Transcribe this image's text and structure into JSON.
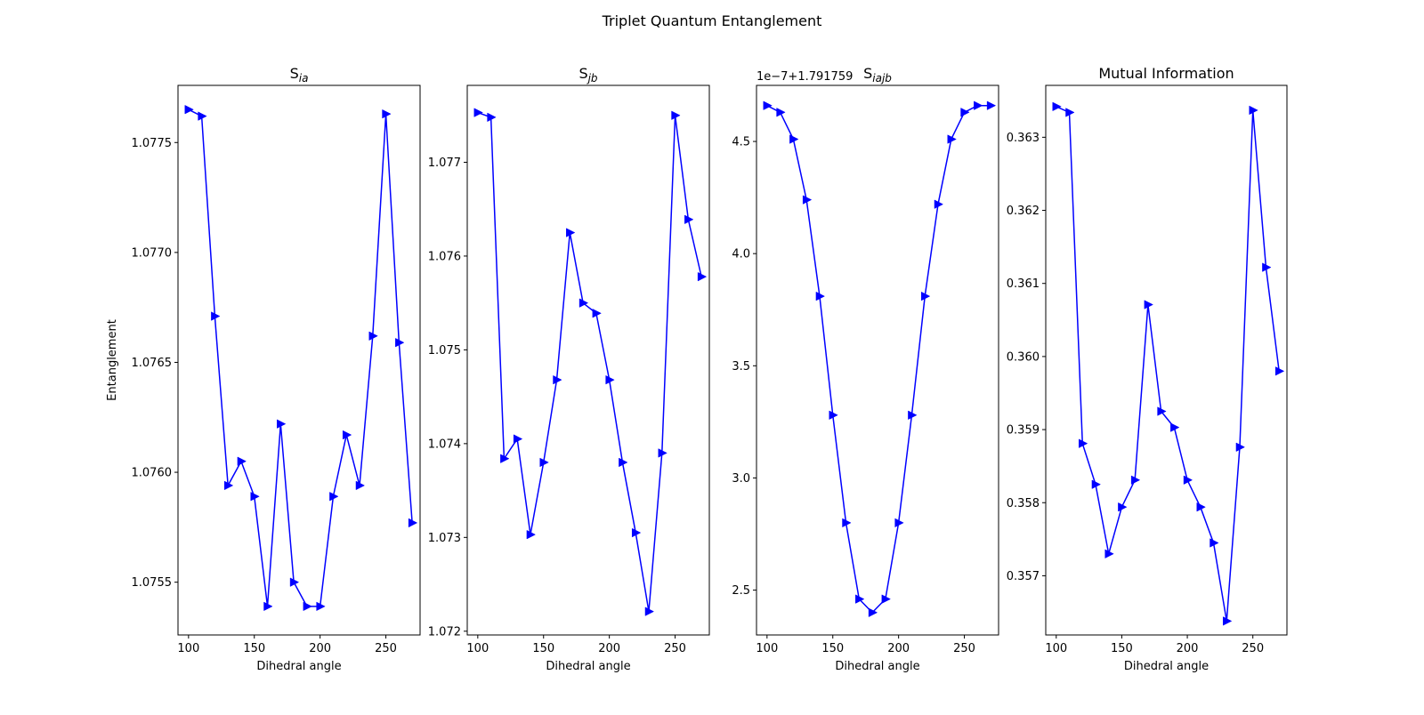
{
  "figure_title": "Triplet Quantum Entanglement",
  "chart_data": [
    {
      "type": "line",
      "title": "S",
      "title_sub": "ia",
      "xlabel": "Dihedral angle",
      "ylabel": "Entanglement",
      "offset_label": "",
      "x": [
        100,
        110,
        120,
        130,
        140,
        150,
        160,
        170,
        180,
        190,
        200,
        210,
        220,
        230,
        240,
        250,
        260,
        270
      ],
      "y": [
        1.07765,
        1.07762,
        1.07671,
        1.07594,
        1.07605,
        1.07589,
        1.07539,
        1.07622,
        1.0755,
        1.07539,
        1.07539,
        1.07589,
        1.07617,
        1.07594,
        1.07662,
        1.07763,
        1.07659,
        1.07577
      ],
      "xlim": [
        92,
        276
      ],
      "ylim": [
        1.07526,
        1.07776
      ],
      "xticks": [
        100,
        150,
        200,
        250
      ],
      "xtick_labels": [
        "100",
        "150",
        "200",
        "250"
      ],
      "yticks": [
        1.0755,
        1.076,
        1.0765,
        1.077,
        1.0775
      ],
      "ytick_labels": [
        "1.0755",
        "1.0760",
        "1.0765",
        "1.0770",
        "1.0775"
      ],
      "grid": false,
      "marker": "triangle-right",
      "color": "#0000ff"
    },
    {
      "type": "line",
      "title": "S",
      "title_sub": "jb",
      "xlabel": "Dihedral angle",
      "ylabel": "",
      "offset_label": "",
      "x": [
        100,
        110,
        120,
        130,
        140,
        150,
        160,
        170,
        180,
        190,
        200,
        210,
        220,
        230,
        240,
        250,
        260,
        270
      ],
      "y": [
        1.07753,
        1.07748,
        1.07384,
        1.07405,
        1.07303,
        1.0738,
        1.07468,
        1.07625,
        1.0755,
        1.07539,
        1.07468,
        1.0738,
        1.07305,
        1.07221,
        1.0739,
        1.0775,
        1.07639,
        1.07578
      ],
      "xlim": [
        92,
        276
      ],
      "ylim": [
        1.07196,
        1.07782
      ],
      "xticks": [
        100,
        150,
        200,
        250
      ],
      "xtick_labels": [
        "100",
        "150",
        "200",
        "250"
      ],
      "yticks": [
        1.072,
        1.073,
        1.074,
        1.075,
        1.076,
        1.077
      ],
      "ytick_labels": [
        "1.072",
        "1.073",
        "1.074",
        "1.075",
        "1.076",
        "1.077"
      ],
      "grid": false,
      "marker": "triangle-right",
      "color": "#0000ff"
    },
    {
      "type": "line",
      "title": "S",
      "title_sub": "iajb",
      "xlabel": "Dihedral angle",
      "ylabel": "",
      "offset_label": "1e−7+1.791759",
      "x": [
        100,
        110,
        120,
        130,
        140,
        150,
        160,
        170,
        180,
        190,
        200,
        210,
        220,
        230,
        240,
        250,
        260,
        270
      ],
      "y": [
        4.66,
        4.63,
        4.51,
        4.24,
        3.81,
        3.28,
        2.8,
        2.46,
        2.4,
        2.46,
        2.8,
        3.28,
        3.81,
        4.22,
        4.51,
        4.63,
        4.66,
        4.66
      ],
      "xlim": [
        92,
        276
      ],
      "ylim": [
        2.3,
        4.75
      ],
      "xticks": [
        100,
        150,
        200,
        250
      ],
      "xtick_labels": [
        "100",
        "150",
        "200",
        "250"
      ],
      "yticks": [
        2.5,
        3.0,
        3.5,
        4.0,
        4.5
      ],
      "ytick_labels": [
        "2.5",
        "3.0",
        "3.5",
        "4.0",
        "4.5"
      ],
      "grid": false,
      "marker": "triangle-right",
      "color": "#0000ff"
    },
    {
      "type": "line",
      "title": "Mutual Information",
      "title_sub": "",
      "xlabel": "Dihedral angle",
      "ylabel": "",
      "offset_label": "",
      "x": [
        100,
        110,
        120,
        130,
        140,
        150,
        160,
        170,
        180,
        190,
        200,
        210,
        220,
        230,
        240,
        250,
        260,
        270
      ],
      "y": [
        0.36342,
        0.36334,
        0.35881,
        0.35825,
        0.3573,
        0.35794,
        0.35831,
        0.36071,
        0.35925,
        0.35903,
        0.35831,
        0.35794,
        0.35745,
        0.35638,
        0.35876,
        0.36337,
        0.36122,
        0.3598
      ],
      "xlim": [
        92,
        276
      ],
      "ylim": [
        0.35619,
        0.36371
      ],
      "xticks": [
        100,
        150,
        200,
        250
      ],
      "xtick_labels": [
        "100",
        "150",
        "200",
        "250"
      ],
      "yticks": [
        0.357,
        0.358,
        0.359,
        0.36,
        0.361,
        0.362,
        0.363
      ],
      "ytick_labels": [
        "0.357",
        "0.358",
        "0.359",
        "0.360",
        "0.361",
        "0.362",
        "0.363"
      ],
      "grid": false,
      "marker": "triangle-right",
      "color": "#0000ff"
    }
  ]
}
